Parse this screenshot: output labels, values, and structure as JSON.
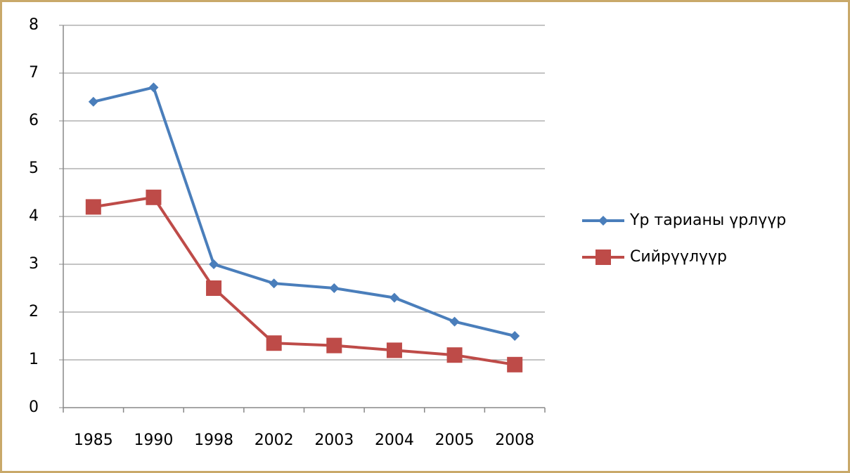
{
  "chart_data": {
    "type": "line",
    "categories": [
      "1985",
      "1990",
      "1998",
      "2002",
      "2003",
      "2004",
      "2005",
      "2008"
    ],
    "series": [
      {
        "name": "Үр тарианы үрлүүр",
        "color": "#4a7ebb",
        "marker": "diamond",
        "values": [
          6.4,
          6.7,
          3.0,
          2.6,
          2.5,
          2.3,
          1.8,
          1.5
        ]
      },
      {
        "name": "Сийрүүлүүр",
        "color": "#be4b48",
        "marker": "square",
        "values": [
          4.2,
          4.4,
          2.5,
          1.35,
          1.3,
          1.2,
          1.1,
          0.9
        ]
      }
    ],
    "ylim": [
      0,
      8
    ],
    "yticks": [
      0,
      1,
      2,
      3,
      4,
      5,
      6,
      7,
      8
    ],
    "grid": true,
    "legend": "right"
  }
}
